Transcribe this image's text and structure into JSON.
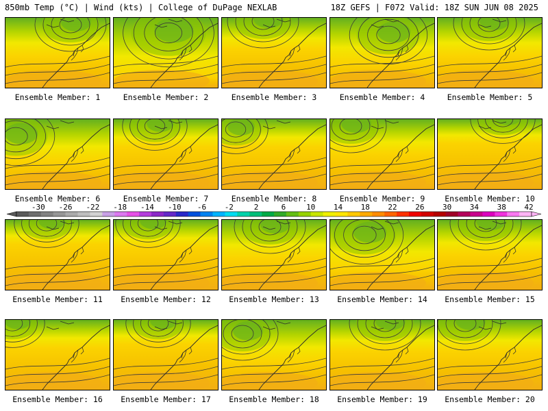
{
  "header": {
    "left": "850mb Temp (°C) | Wind (kts) | College of DuPage NEXLAB",
    "right": "18Z GEFS | F072 Valid: 18Z SUN JUN 08 2025"
  },
  "panel_caption_prefix": "Ensemble Member: ",
  "members": [
    {
      "number": "1",
      "pattern": 0
    },
    {
      "number": "2",
      "pattern": 1
    },
    {
      "number": "3",
      "pattern": 2
    },
    {
      "number": "4",
      "pattern": 3
    },
    {
      "number": "5",
      "pattern": 4
    },
    {
      "number": "6",
      "pattern": 5
    },
    {
      "number": "7",
      "pattern": 6
    },
    {
      "number": "8",
      "pattern": 7
    },
    {
      "number": "9",
      "pattern": 8
    },
    {
      "number": "10",
      "pattern": 9
    },
    {
      "number": "11",
      "pattern": 10
    },
    {
      "number": "12",
      "pattern": 11
    },
    {
      "number": "13",
      "pattern": 12
    },
    {
      "number": "14",
      "pattern": 13
    },
    {
      "number": "15",
      "pattern": 14
    },
    {
      "number": "16",
      "pattern": 15
    },
    {
      "number": "17",
      "pattern": 16
    },
    {
      "number": "18",
      "pattern": 17
    },
    {
      "number": "19",
      "pattern": 18
    },
    {
      "number": "20",
      "pattern": 19
    }
  ],
  "colorbar": {
    "labels": [
      "-30",
      "-26",
      "-22",
      "-18",
      "-14",
      "-10",
      "-6",
      "-2",
      "2",
      "6",
      "10",
      "14",
      "18",
      "22",
      "26",
      "30",
      "34",
      "38",
      "42"
    ],
    "colors": [
      "#5a5a5a",
      "#6e6e6e",
      "#828282",
      "#969696",
      "#aaaaaa",
      "#bebebe",
      "#d2d2d2",
      "#c8a0e6",
      "#dc78f0",
      "#e650e6",
      "#b43cdc",
      "#8c28c8",
      "#6428c8",
      "#2828c8",
      "#0050dc",
      "#0082f0",
      "#00b4ff",
      "#00dcf0",
      "#00d2aa",
      "#00be78",
      "#00aa46",
      "#32aa28",
      "#64be14",
      "#96d200",
      "#c8e600",
      "#f0f000",
      "#ffe600",
      "#ffc800",
      "#ffaa00",
      "#ff8c00",
      "#ff6400",
      "#ff3200",
      "#f00000",
      "#d20000",
      "#b40000",
      "#a00028",
      "#b4005a",
      "#c8008c",
      "#dc00be",
      "#f032dc",
      "#fa78f0",
      "#ffb4f5"
    ]
  },
  "field_colors": [
    "#f2ae14",
    "#f6c000",
    "#fbd300",
    "#f2e800",
    "#d4e000",
    "#b2d400",
    "#8cc400",
    "#64b020"
  ],
  "contour_color": "#3a3a3a",
  "coast_color": "#2a2a2a"
}
